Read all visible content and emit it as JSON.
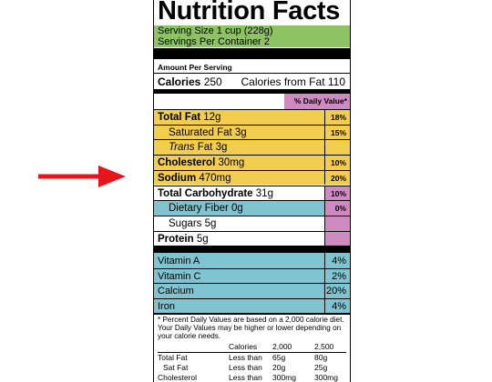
{
  "title": "Nutrition Facts",
  "serving": [
    "Serving Size 1 cup (228g)",
    "Servings Per Container 2"
  ],
  "amount_header": "Amount Per Serving",
  "calories": {
    "label": "Calories",
    "value": "250",
    "from_fat": "Calories from Fat 110"
  },
  "dv_header": "% Daily Value*",
  "nutrients": [
    {
      "name": "Total Fat",
      "amount": "12g",
      "dv": "18%"
    },
    {
      "name": "Saturated Fat",
      "amount": "3g",
      "dv": "15%"
    },
    {
      "name_italic": "Trans",
      "name": "Fat",
      "amount": "3g"
    },
    {
      "name": "Cholesterol",
      "amount": "30mg",
      "dv": "10%"
    },
    {
      "name": "Sodium",
      "amount": "470mg",
      "dv": "20%"
    },
    {
      "name": "Total Carbohydrate",
      "amount": "31g",
      "dv": "10%"
    },
    {
      "name": "Dietary Fiber",
      "amount": "0g",
      "dv": "0%"
    },
    {
      "name": "Sugars",
      "amount": "5g"
    },
    {
      "name": "Protein",
      "amount": "5g"
    }
  ],
  "vitamins": [
    {
      "name": "Vitamin A",
      "dv": "4%"
    },
    {
      "name": "Vitamin C",
      "dv": "2%"
    },
    {
      "name": "Calcium",
      "dv": "20%"
    },
    {
      "name": "Iron",
      "dv": "4%"
    }
  ],
  "footnote": "* Percent Daily Values are based on a 2,000 calorie diet. Your Daily Values may be higher or lower depending on your calorie needs.",
  "daily_table": {
    "header": [
      "Calories",
      "2,000",
      "2,500"
    ],
    "rows": [
      [
        "Total Fat",
        "Less than",
        "65g",
        "80g"
      ],
      [
        "Sat Fat",
        "Less than",
        "20g",
        "25g"
      ],
      [
        "Cholesterol",
        "Less than",
        "300mg",
        "300mg"
      ]
    ]
  }
}
